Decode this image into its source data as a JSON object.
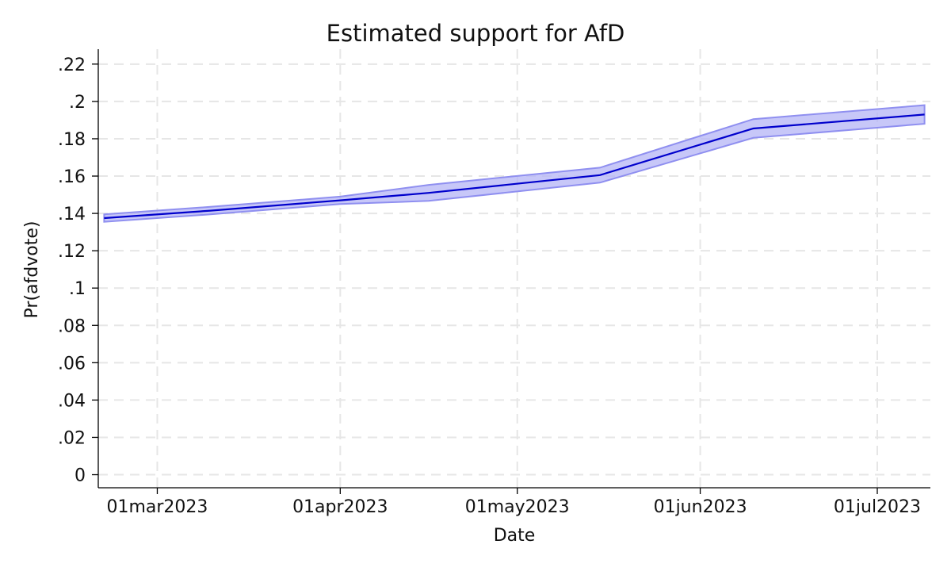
{
  "chart_data": {
    "type": "line",
    "title": "Estimated support for AfD",
    "xlabel": "Date",
    "ylabel": "Pr(afdvote)",
    "x_type": "date",
    "xlim": [
      "2023-02-19",
      "2023-07-10"
    ],
    "ylim": [
      -0.007,
      0.228
    ],
    "x_ticks": [
      {
        "date": "2023-03-01",
        "label": "01mar2023"
      },
      {
        "date": "2023-04-01",
        "label": "01apr2023"
      },
      {
        "date": "2023-05-01",
        "label": "01may2023"
      },
      {
        "date": "2023-06-01",
        "label": "01jun2023"
      },
      {
        "date": "2023-07-01",
        "label": "01jul2023"
      }
    ],
    "y_ticks": [
      {
        "value": 0,
        "label": "0"
      },
      {
        "value": 0.02,
        "label": ".02"
      },
      {
        "value": 0.04,
        "label": ".04"
      },
      {
        "value": 0.06,
        "label": ".06"
      },
      {
        "value": 0.08,
        "label": ".08"
      },
      {
        "value": 0.1,
        "label": ".1"
      },
      {
        "value": 0.12,
        "label": ".12"
      },
      {
        "value": 0.14,
        "label": ".14"
      },
      {
        "value": 0.16,
        "label": ".16"
      },
      {
        "value": 0.18,
        "label": ".18"
      },
      {
        "value": 0.2,
        "label": ".2"
      },
      {
        "value": 0.22,
        "label": ".22"
      }
    ],
    "grid": true,
    "legend": "none",
    "series": [
      {
        "x": [
          "2023-02-20",
          "2023-03-10",
          "2023-04-01",
          "2023-04-16",
          "2023-05-15",
          "2023-06-10",
          "2023-07-09"
        ],
        "y": [
          0.1375,
          0.1415,
          0.147,
          0.151,
          0.1605,
          0.1855,
          0.193
        ],
        "ci_lower": [
          0.1355,
          0.1395,
          0.145,
          0.1467,
          0.1565,
          0.1805,
          0.188
        ],
        "ci_upper": [
          0.1395,
          0.1435,
          0.149,
          0.1553,
          0.1645,
          0.1905,
          0.198
        ],
        "color": "#0000cc",
        "ci_color": "#b4b4f5"
      }
    ]
  }
}
